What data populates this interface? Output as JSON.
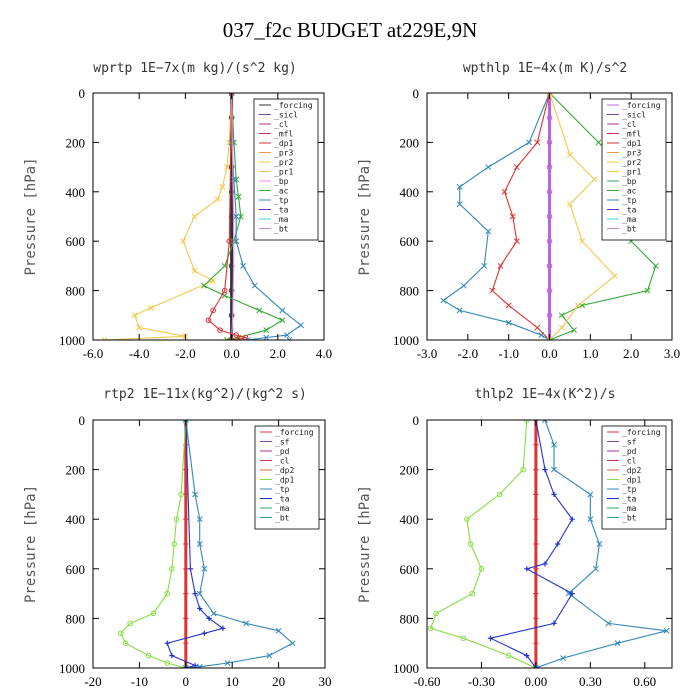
{
  "title": "037_f2c  BUDGET at229E,9N",
  "chart_data": [
    {
      "type": "line",
      "title": "wprtp  1E−7x(m kg)/(s^2 kg)",
      "ylabel": "Pressure [hPa]",
      "xlim": [
        -6.0,
        4.0
      ],
      "ylim": [
        0,
        1000
      ],
      "xticks": [
        -6.0,
        -4.0,
        -2.0,
        0.0,
        2.0,
        4.0
      ],
      "xtick_labels": [
        "-6.0",
        "-4.0",
        "-2.0",
        "0.0",
        "2.0",
        "4.0"
      ],
      "yticks": [
        0,
        200,
        400,
        600,
        800,
        1000
      ],
      "y_inverted": true,
      "legend_position": "top-right",
      "legend": [
        "_forcing",
        "_sicl",
        "_cl",
        "_mfl",
        "_dp1",
        "_pr3",
        "_pr2",
        "_pr1",
        "_bp",
        "_ac",
        "_tp",
        "_ta",
        "_ma",
        "_bt"
      ],
      "series": [
        {
          "name": "_forcing",
          "color": "#333333",
          "marker": "circle",
          "x": [
            0,
            0,
            0,
            0,
            0,
            0,
            0,
            0,
            0,
            0,
            0
          ],
          "y": [
            0,
            100,
            200,
            300,
            400,
            500,
            600,
            700,
            800,
            900,
            1000
          ]
        },
        {
          "name": "_pr1",
          "color": "#f2c94c",
          "marker": "x",
          "x": [
            0,
            -0.1,
            -0.2,
            -0.4,
            -0.6,
            -1.6,
            -2.1,
            -1.6,
            -0.8,
            -3.5,
            -4.2,
            -4.0,
            -2.0,
            -5.5
          ],
          "y": [
            0,
            200,
            300,
            380,
            430,
            500,
            600,
            720,
            760,
            870,
            900,
            950,
            985,
            1000
          ]
        },
        {
          "name": "_ac",
          "color": "#33aa33",
          "marker": "x",
          "x": [
            0,
            0.1,
            0.2,
            0.3,
            0.4,
            0.1,
            -0.3,
            -1.2,
            -0.3,
            1.2,
            2.2,
            1.5,
            0.3,
            -0.2
          ],
          "y": [
            0,
            200,
            350,
            420,
            500,
            600,
            700,
            780,
            820,
            880,
            920,
            960,
            990,
            1000
          ]
        },
        {
          "name": "_tp",
          "color": "#3388bb",
          "marker": "x",
          "x": [
            0,
            0,
            0.1,
            0.2,
            0.2,
            0.5,
            1.0,
            2.2,
            3.0,
            2.4,
            1.5,
            0.7,
            2.5
          ],
          "y": [
            0,
            200,
            350,
            500,
            600,
            700,
            780,
            880,
            940,
            980,
            990,
            1000,
            1000
          ]
        },
        {
          "name": "_dp1",
          "color": "#dd3333",
          "marker": "circle",
          "x": [
            0,
            -0.1,
            -0.3,
            -0.8,
            -1.0,
            -0.5,
            0.2,
            0.6,
            0.4,
            0
          ],
          "y": [
            0,
            600,
            800,
            880,
            920,
            960,
            980,
            990,
            995,
            1000
          ]
        },
        {
          "name": "_bp",
          "color": "#ee88ee",
          "marker": "none",
          "x": [
            0,
            0.1,
            0.05,
            0
          ],
          "y": [
            0,
            600,
            900,
            1000
          ]
        }
      ]
    },
    {
      "type": "line",
      "title": "wpthlp  1E−4x(m K)/s^2",
      "ylabel": "Pressure [hPa]",
      "xlim": [
        -3.0,
        3.0
      ],
      "ylim": [
        0,
        1000
      ],
      "xticks": [
        -3.0,
        -2.0,
        -1.0,
        0.0,
        1.0,
        2.0,
        3.0
      ],
      "xtick_labels": [
        "-3.0",
        "-2.0",
        "-1.0",
        "0.0",
        "1.0",
        "2.0",
        "3.0"
      ],
      "yticks": [
        0,
        200,
        400,
        600,
        800,
        1000
      ],
      "y_inverted": true,
      "legend_position": "top-right",
      "legend": [
        "_forcing",
        "_sicl",
        "_cl",
        "_mfl",
        "_dp1",
        "_pr3",
        "_pr2",
        "_pr1",
        "_bp",
        "_ac",
        "_tp",
        "_ta",
        "_ma",
        "_bt"
      ],
      "series": [
        {
          "name": "_forcing",
          "color": "#bb66dd",
          "marker": "circle",
          "x": [
            0,
            0,
            0,
            0,
            0,
            0,
            0,
            0,
            0,
            0,
            0
          ],
          "y": [
            0,
            100,
            200,
            300,
            400,
            500,
            600,
            700,
            800,
            900,
            1000
          ]
        },
        {
          "name": "_tp",
          "color": "#3388bb",
          "marker": "x",
          "x": [
            0,
            -0.5,
            -1.5,
            -2.2,
            -2.2,
            -1.5,
            -1.6,
            -2.1,
            -2.6,
            -2.2,
            -1.0,
            -0.2,
            0
          ],
          "y": [
            0,
            200,
            300,
            380,
            450,
            560,
            700,
            780,
            840,
            880,
            930,
            980,
            1000
          ]
        },
        {
          "name": "_dp1",
          "color": "#dd3333",
          "marker": "x",
          "x": [
            0,
            -0.3,
            -0.8,
            -1.1,
            -0.9,
            -0.8,
            -1.2,
            -1.4,
            -1.0,
            -0.3,
            0
          ],
          "y": [
            0,
            200,
            300,
            400,
            500,
            600,
            700,
            800,
            860,
            950,
            1000
          ]
        },
        {
          "name": "_ac",
          "color": "#33aa33",
          "marker": "x",
          "x": [
            0,
            1.2,
            1.8,
            1.5,
            1.7,
            2.0,
            2.6,
            2.4,
            0.8,
            0.3,
            0.6,
            0
          ],
          "y": [
            0,
            200,
            300,
            400,
            500,
            600,
            700,
            800,
            860,
            900,
            960,
            1000
          ]
        },
        {
          "name": "_pr1",
          "color": "#f2c94c",
          "marker": "x",
          "x": [
            0,
            0.5,
            1.1,
            0.5,
            0.8,
            1.6,
            0.7,
            0.3,
            0
          ],
          "y": [
            0,
            250,
            350,
            450,
            600,
            740,
            860,
            950,
            1000
          ]
        }
      ]
    },
    {
      "type": "line",
      "title": "rtp2  1E−11x(kg^2)/(kg^2 s)",
      "ylabel": "Pressure [hPa]",
      "xlim": [
        -20,
        30
      ],
      "ylim": [
        0,
        1000
      ],
      "xticks": [
        -20,
        -10,
        0,
        10,
        20,
        30
      ],
      "xtick_labels": [
        "-20",
        "-10",
        "0",
        "10",
        "20",
        "30"
      ],
      "yticks": [
        0,
        200,
        400,
        600,
        800,
        1000
      ],
      "y_inverted": true,
      "legend_position": "top-right",
      "legend": [
        "_forcing",
        "_sf",
        "_pd",
        "_cl",
        "_dp2",
        "_dp1",
        "_tp",
        "_ta",
        "_ma",
        "_bt"
      ],
      "series": [
        {
          "name": "_forcing",
          "color": "#dd3333",
          "marker": "cross",
          "x": [
            0,
            0,
            0,
            0,
            0,
            0,
            0,
            0,
            0,
            0,
            0
          ],
          "y": [
            0,
            100,
            200,
            300,
            400,
            500,
            600,
            700,
            800,
            900,
            1000
          ]
        },
        {
          "name": "_dp1",
          "color": "#88dd44",
          "marker": "circle",
          "x": [
            0,
            -1,
            -2,
            -2.5,
            -3,
            -4,
            -7,
            -12,
            -14,
            -13,
            -8,
            -4,
            0
          ],
          "y": [
            0,
            300,
            400,
            500,
            600,
            700,
            780,
            820,
            860,
            900,
            950,
            980,
            1000
          ]
        },
        {
          "name": "_tp",
          "color": "#3388bb",
          "marker": "x",
          "x": [
            0,
            2,
            3,
            3,
            4,
            3,
            6,
            13,
            20,
            23,
            18,
            9,
            3,
            0
          ],
          "y": [
            0,
            300,
            400,
            500,
            600,
            700,
            780,
            820,
            850,
            900,
            950,
            980,
            995,
            1000
          ]
        },
        {
          "name": "_ta",
          "color": "#2233cc",
          "marker": "plus",
          "x": [
            0,
            1,
            2,
            3,
            5,
            8,
            4,
            -4,
            -3,
            2,
            0
          ],
          "y": [
            0,
            600,
            700,
            760,
            800,
            840,
            860,
            900,
            950,
            990,
            1000
          ]
        }
      ]
    },
    {
      "type": "line",
      "title": "thlp2  1E−4x(K^2)/s",
      "ylabel": "Pressure [hPa]",
      "xlim": [
        -0.6,
        0.75
      ],
      "ylim": [
        0,
        1000
      ],
      "xticks": [
        -0.6,
        -0.3,
        0.0,
        0.3,
        0.6
      ],
      "xtick_labels": [
        "-0.60",
        "-0.30",
        "0.00",
        "0.30",
        "0.60"
      ],
      "yticks": [
        0,
        200,
        400,
        600,
        800,
        1000
      ],
      "y_inverted": true,
      "legend_position": "top-right",
      "legend": [
        "_forcing",
        "_sf",
        "_pd",
        "_cl",
        "_dp2",
        "_dp1",
        "_tp",
        "_ta",
        "_ma",
        "_bt"
      ],
      "series": [
        {
          "name": "_forcing",
          "color": "#dd3333",
          "marker": "cross",
          "x": [
            0,
            0,
            0,
            0,
            0,
            0,
            0,
            0,
            0,
            0,
            0
          ],
          "y": [
            0,
            100,
            200,
            300,
            400,
            500,
            600,
            700,
            800,
            900,
            1000
          ]
        },
        {
          "name": "_dp1",
          "color": "#88dd44",
          "marker": "circle",
          "x": [
            -0.05,
            -0.07,
            -0.2,
            -0.38,
            -0.36,
            -0.3,
            -0.35,
            -0.55,
            -0.58,
            -0.4,
            -0.15,
            0
          ],
          "y": [
            0,
            200,
            300,
            400,
            500,
            600,
            700,
            780,
            840,
            880,
            950,
            1000
          ]
        },
        {
          "name": "_tp",
          "color": "#3388bb",
          "marker": "x",
          "x": [
            0.05,
            0.1,
            0.1,
            0.3,
            0.3,
            0.35,
            0.33,
            0.18,
            0.4,
            0.72,
            0.45,
            0.15,
            0
          ],
          "y": [
            0,
            100,
            200,
            300,
            400,
            500,
            600,
            700,
            820,
            850,
            900,
            960,
            1000
          ]
        },
        {
          "name": "_ta",
          "color": "#2233cc",
          "marker": "plus",
          "x": [
            0,
            0.05,
            0.1,
            0.2,
            0.12,
            0.05,
            -0.05,
            0.2,
            0.1,
            -0.25,
            -0.05,
            0
          ],
          "y": [
            0,
            200,
            300,
            400,
            500,
            580,
            600,
            700,
            820,
            880,
            950,
            1000
          ]
        }
      ]
    }
  ]
}
